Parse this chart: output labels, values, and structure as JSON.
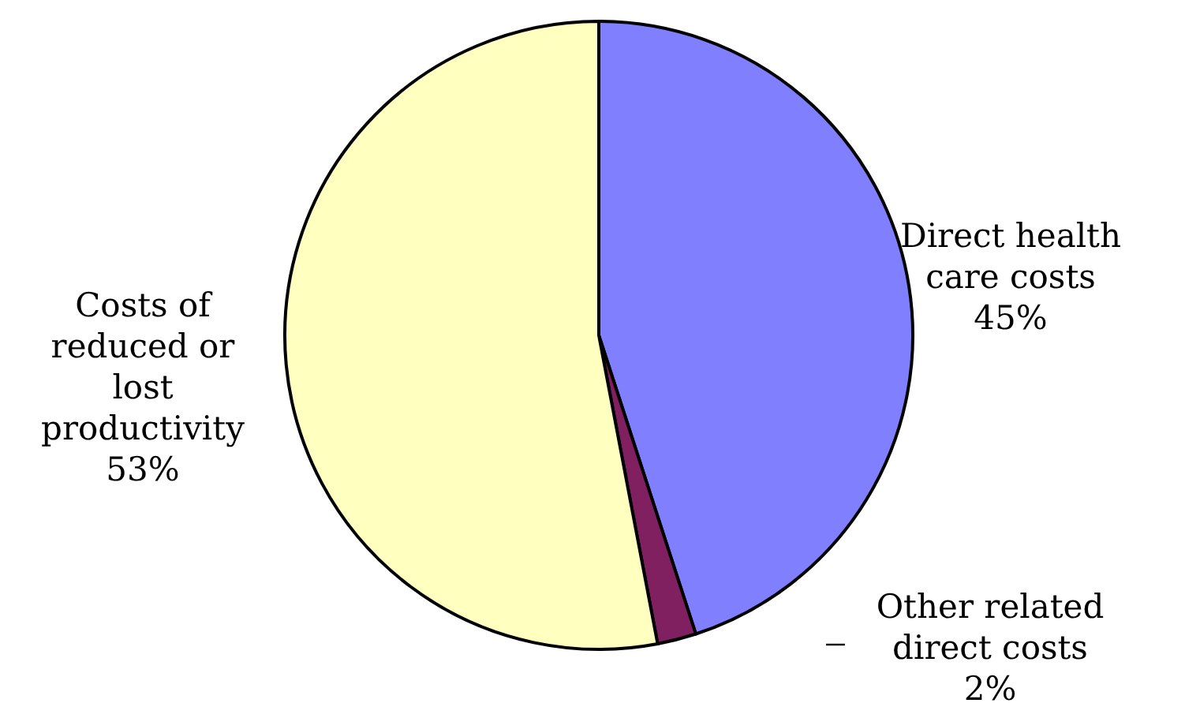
{
  "chart_data": {
    "type": "pie",
    "categories": [
      "Direct health\ncare costs",
      "Other related\ndirect costs",
      "Costs of\nreduced or\nlost\nproductivity"
    ],
    "values": [
      45,
      2,
      53
    ],
    "value_labels": [
      "45%",
      "2%",
      "53%"
    ],
    "colors": [
      "#8080ff",
      "#802060",
      "#ffffc0"
    ]
  }
}
